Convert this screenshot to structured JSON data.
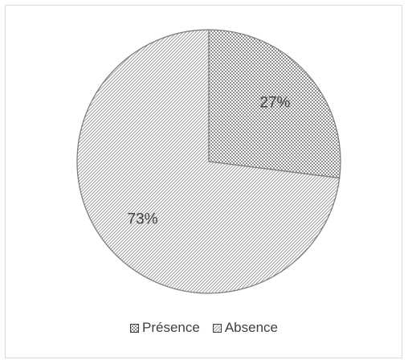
{
  "chart_data": {
    "type": "pie",
    "title": "",
    "categories": [
      "Présence",
      "Absence"
    ],
    "values": [
      27,
      73
    ],
    "labels": [
      "27%",
      "73%"
    ],
    "unit": "%",
    "legend_position": "bottom",
    "start_angle_deg": 0,
    "direction": "clockwise",
    "patterns": {
      "Présence": "checkered",
      "Absence": "diagonal-hatch"
    },
    "colors": {
      "pattern_ink": "#909090",
      "outline": "#7f7f7f",
      "label_text": "#404040",
      "frame_border": "#d9d9d9"
    }
  }
}
